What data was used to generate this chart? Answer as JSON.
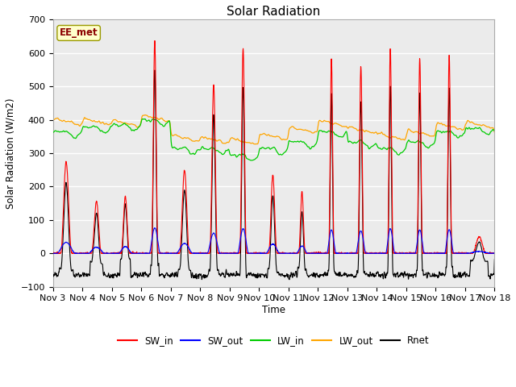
{
  "title": "Solar Radiation",
  "ylabel": "Solar Radiation (W/m2)",
  "xlabel": "Time",
  "ylim": [
    -100,
    700
  ],
  "station_label": "EE_met",
  "x_tick_labels": [
    "Nov 3",
    "Nov 4",
    "Nov 5",
    "Nov 6",
    "Nov 7",
    "Nov 8",
    "Nov 9",
    "Nov 10",
    "Nov 11",
    "Nov 12",
    "Nov 13",
    "Nov 14",
    "Nov 15",
    "Nov 16",
    "Nov 17",
    "Nov 18"
  ],
  "colors": {
    "SW_in": "#ff0000",
    "SW_out": "#0000ff",
    "LW_in": "#00cc00",
    "LW_out": "#ffa500",
    "Rnet": "#000000"
  },
  "bg_color": "#ebebeb",
  "fig_bg": "#ffffff",
  "sw_in_peaks": [
    275,
    155,
    170,
    635,
    250,
    505,
    615,
    235,
    185,
    585,
    560,
    615,
    585,
    595,
    50
  ],
  "sw_in_widths": [
    0.2,
    0.18,
    0.15,
    0.12,
    0.18,
    0.14,
    0.12,
    0.15,
    0.12,
    0.1,
    0.11,
    0.1,
    0.1,
    0.1,
    0.25
  ],
  "sw_in_centers": [
    0.45,
    0.48,
    0.46,
    0.46,
    0.47,
    0.46,
    0.46,
    0.47,
    0.46,
    0.46,
    0.46,
    0.46,
    0.46,
    0.46,
    0.48
  ],
  "night_rnet": -65,
  "lw_in_base": 355,
  "lw_out_base": 375
}
